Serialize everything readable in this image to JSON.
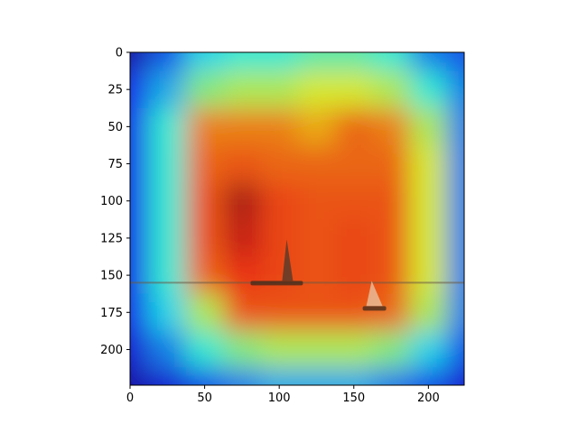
{
  "chart_data": {
    "type": "heatmap",
    "title": "",
    "xlabel": "",
    "ylabel": "",
    "image_size": [
      224,
      224
    ],
    "xlim": [
      0,
      224
    ],
    "ylim": [
      224,
      0
    ],
    "xticks": [
      0,
      50,
      100,
      150,
      200
    ],
    "xtick_labels": [
      "0",
      "50",
      "100",
      "150",
      "200"
    ],
    "yticks": [
      0,
      25,
      50,
      75,
      100,
      125,
      150,
      175,
      200
    ],
    "ytick_labels": [
      "0",
      "25",
      "50",
      "75",
      "100",
      "125",
      "150",
      "175",
      "200"
    ],
    "colormap": "jet",
    "overlay_alpha": 0.5,
    "base_image": "painting of a sea horizon with two sailboats",
    "horizon_y": 155,
    "boats": [
      {
        "name": "left-boat",
        "x": 105,
        "y": 155
      },
      {
        "name": "right-boat",
        "x": 162,
        "y": 172
      }
    ],
    "activation_grid": {
      "x": [
        0,
        25,
        50,
        75,
        100,
        125,
        150,
        175,
        200,
        224
      ],
      "y": [
        0,
        25,
        50,
        75,
        100,
        125,
        150,
        175,
        200,
        224
      ],
      "values": [
        [
          0.05,
          0.2,
          0.35,
          0.4,
          0.4,
          0.45,
          0.45,
          0.4,
          0.25,
          0.2
        ],
        [
          0.15,
          0.3,
          0.5,
          0.55,
          0.55,
          0.6,
          0.6,
          0.55,
          0.4,
          0.25
        ],
        [
          0.15,
          0.4,
          0.75,
          0.75,
          0.75,
          0.7,
          0.78,
          0.75,
          0.55,
          0.25
        ],
        [
          0.15,
          0.4,
          0.78,
          0.8,
          0.78,
          0.78,
          0.78,
          0.78,
          0.6,
          0.25
        ],
        [
          0.15,
          0.4,
          0.8,
          0.95,
          0.82,
          0.8,
          0.8,
          0.8,
          0.6,
          0.25
        ],
        [
          0.15,
          0.4,
          0.8,
          0.92,
          0.82,
          0.8,
          0.82,
          0.8,
          0.6,
          0.25
        ],
        [
          0.15,
          0.4,
          0.78,
          0.85,
          0.82,
          0.8,
          0.82,
          0.8,
          0.6,
          0.25
        ],
        [
          0.15,
          0.35,
          0.55,
          0.8,
          0.8,
          0.8,
          0.8,
          0.78,
          0.55,
          0.25
        ],
        [
          0.1,
          0.25,
          0.4,
          0.5,
          0.55,
          0.55,
          0.55,
          0.5,
          0.35,
          0.2
        ],
        [
          0.05,
          0.1,
          0.2,
          0.25,
          0.3,
          0.3,
          0.3,
          0.25,
          0.2,
          0.1
        ]
      ]
    }
  }
}
